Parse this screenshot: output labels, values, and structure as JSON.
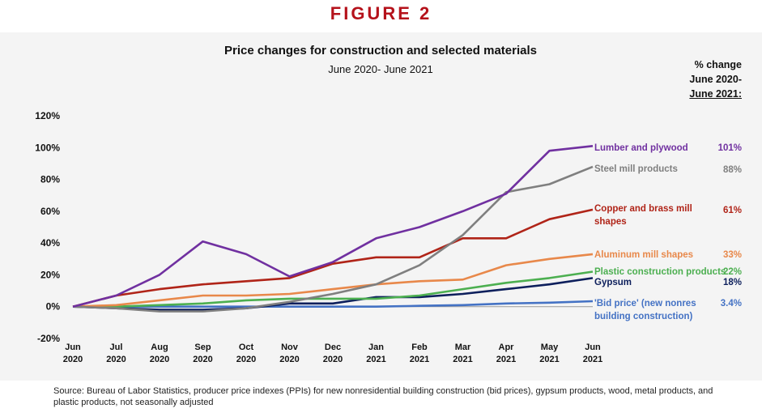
{
  "figure_label": "FIGURE 2",
  "pct_header": [
    "% change",
    "June 2020-",
    "June 2021:"
  ],
  "source": "Source: Bureau of Labor Statistics, producer price indexes (PPIs) for new nonresidential building construction (bid prices), gypsum products, wood, metal products, and plastic products, not seasonally adjusted",
  "chart_data": {
    "type": "line",
    "title": "Price changes for construction and selected materials",
    "subtitle": "June 2020- June 2021",
    "xlabel": "",
    "ylabel": "",
    "ylim": [
      -20,
      120
    ],
    "yticks": [
      "120%",
      "100%",
      "80%",
      "60%",
      "40%",
      "20%",
      "0%",
      "-20%"
    ],
    "categories": [
      [
        "Jun",
        "2020"
      ],
      [
        "Jul",
        "2020"
      ],
      [
        "Aug",
        "2020"
      ],
      [
        "Sep",
        "2020"
      ],
      [
        "Oct",
        "2020"
      ],
      [
        "Nov",
        "2020"
      ],
      [
        "Dec",
        "2020"
      ],
      [
        "Jan",
        "2021"
      ],
      [
        "Feb",
        "2021"
      ],
      [
        "Mar",
        "2021"
      ],
      [
        "Apr",
        "2021"
      ],
      [
        "May",
        "2021"
      ],
      [
        "Jun",
        "2021"
      ]
    ],
    "grid": false,
    "series": [
      {
        "name": "Lumber and plywood",
        "label_lines": [
          "Lumber and plywood"
        ],
        "pct": "101%",
        "color": "#7030a0",
        "values": [
          0,
          7,
          20,
          41,
          33,
          19,
          28,
          43,
          50,
          60,
          71,
          98,
          101
        ]
      },
      {
        "name": "Steel mill products",
        "label_lines": [
          "Steel mill products"
        ],
        "pct": "88%",
        "color": "#7f7f7f",
        "values": [
          0,
          -1,
          -3,
          -3,
          -1,
          3,
          8,
          14,
          26,
          45,
          72,
          77,
          88
        ]
      },
      {
        "name": "Copper and brass mill shapes",
        "label_lines": [
          "Copper and brass mill",
          "shapes"
        ],
        "pct": "61%",
        "color": "#b02418",
        "values": [
          0,
          7,
          11,
          14,
          16,
          18,
          27,
          31,
          31,
          43,
          43,
          55,
          61
        ]
      },
      {
        "name": "Aluminum mill shapes",
        "label_lines": [
          "Aluminum mill shapes"
        ],
        "pct": "33%",
        "color": "#e8884a",
        "values": [
          0,
          1,
          4,
          7,
          7,
          8,
          11,
          14,
          16,
          17,
          26,
          30,
          33
        ]
      },
      {
        "name": "Plastic construction products",
        "label_lines": [
          "Plastic construction products"
        ],
        "pct": "22%",
        "color": "#4caf50",
        "values": [
          0,
          0,
          1,
          2,
          4,
          5,
          5,
          5,
          7,
          11,
          15,
          18,
          22
        ]
      },
      {
        "name": "Gypsum",
        "label_lines": [
          "Gypsum"
        ],
        "pct": "18%",
        "color": "#0d1f5c",
        "values": [
          0,
          -1,
          -2,
          -2,
          -1,
          2,
          2,
          6,
          6,
          8,
          11,
          14,
          18
        ]
      },
      {
        "name": "'Bid price' (new nonres building construction)",
        "label_lines": [
          "'Bid price' (new nonres",
          "building construction)"
        ],
        "pct": "3.4%",
        "color": "#4472c4",
        "values": [
          0,
          0,
          0,
          0,
          0,
          0,
          0,
          0,
          0.5,
          1,
          2,
          2.5,
          3.4
        ]
      }
    ]
  }
}
